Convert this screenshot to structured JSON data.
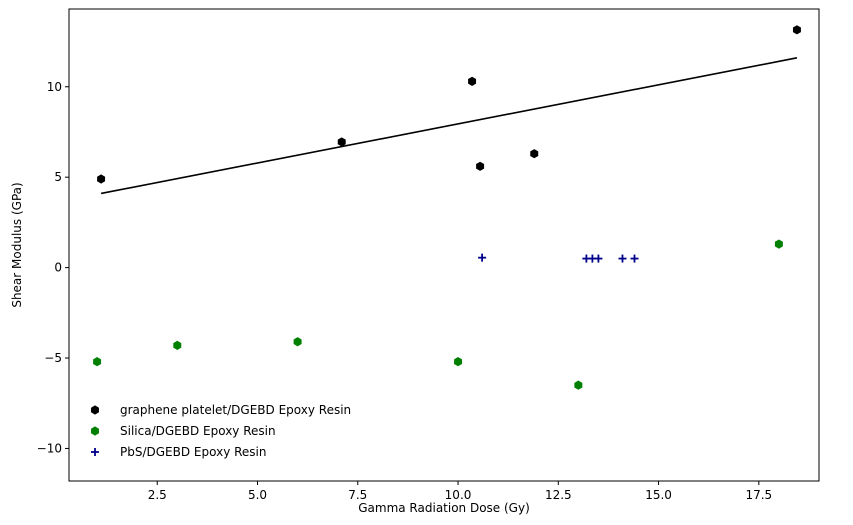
{
  "chart_data": {
    "type": "scatter",
    "title": "",
    "xlabel": "Gamma Radiation Dose (Gy)",
    "ylabel": "Shear Modulus (GPa)",
    "xlim": [
      0.3,
      19.0
    ],
    "ylim": [
      -11.8,
      14.3
    ],
    "x_ticks": [
      2.5,
      5.0,
      7.5,
      10.0,
      12.5,
      15.0,
      17.5
    ],
    "x_tick_labels": [
      "2.5",
      "5.0",
      "7.5",
      "10.0",
      "12.5",
      "15.0",
      "17.5"
    ],
    "y_ticks": [
      -10,
      -5,
      0,
      5,
      10
    ],
    "y_tick_labels": [
      "−10",
      "−5",
      "0",
      "5",
      "10"
    ],
    "grid": false,
    "legend_position": "lower-left",
    "series": [
      {
        "name": "graphene platelet/DGEBD Epoxy Resin",
        "marker": "hexagon",
        "color": "#000000",
        "x": [
          1.1,
          7.1,
          10.35,
          10.55,
          11.9,
          18.45
        ],
        "y": [
          4.9,
          6.95,
          10.3,
          5.6,
          6.3,
          13.15
        ]
      },
      {
        "name": "Silica/DGEBD Epoxy Resin",
        "marker": "hexagon",
        "color": "#008000",
        "x": [
          1.0,
          3.0,
          6.0,
          10.0,
          13.0,
          18.0
        ],
        "y": [
          -5.2,
          -4.3,
          -4.1,
          -5.2,
          -6.5,
          1.3
        ]
      },
      {
        "name": "PbS/DGEBD Epoxy Resin",
        "marker": "plus",
        "color": "#00008b",
        "x": [
          10.6,
          13.2,
          13.35,
          13.5,
          14.1,
          14.4
        ],
        "y": [
          0.55,
          0.5,
          0.5,
          0.5,
          0.5,
          0.5
        ]
      }
    ],
    "trend_line": {
      "color": "#000000",
      "x": [
        1.1,
        18.45
      ],
      "y": [
        4.1,
        11.6
      ]
    }
  }
}
